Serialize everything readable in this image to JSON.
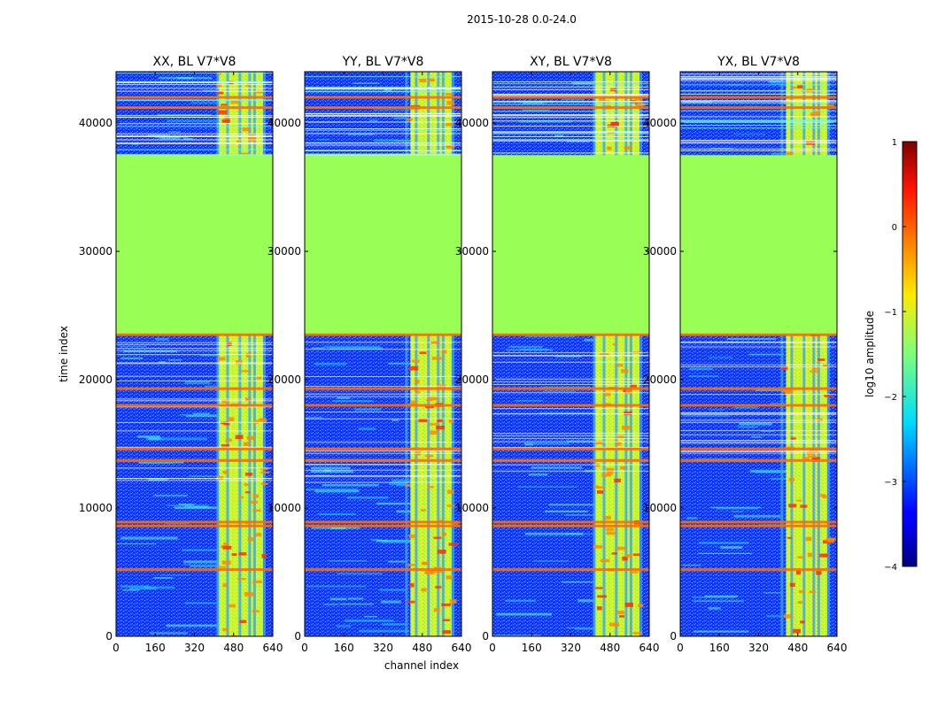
{
  "figure": {
    "suptitle": "2015-10-28 0.0-24.0",
    "xlabel": "channel index",
    "ylabel": "time index"
  },
  "colors": {
    "background": "#ffffff",
    "flagged_fill": "#99ff55",
    "flag_line": "#ff6a00",
    "axes": "#000000"
  },
  "chart_data": {
    "type": "heatmap",
    "x_range": [
      0,
      640
    ],
    "y_range": [
      0,
      44000
    ],
    "x_ticks": [
      0,
      160,
      320,
      480,
      640
    ],
    "x_tick_labels": [
      "0",
      "160",
      "320",
      "480",
      "640"
    ],
    "y_ticks": [
      0,
      10000,
      20000,
      30000,
      40000
    ],
    "y_tick_labels": [
      "0",
      "10000",
      "20000",
      "30000",
      "40000"
    ],
    "panels": [
      {
        "title": "XX, BL V7*V8",
        "polarization": "XX"
      },
      {
        "title": "YY, BL V7*V8",
        "polarization": "YY"
      },
      {
        "title": "XY, BL V7*V8",
        "polarization": "XY"
      },
      {
        "title": "YX, BL V7*V8",
        "polarization": "YX"
      }
    ],
    "flagged_time_range": [
      23500,
      37500
    ],
    "flag_lines": [
      23500,
      19300,
      18000,
      14600,
      13700,
      8900,
      8600,
      5200,
      41200,
      42000
    ],
    "bright_channel_band": [
      410,
      600
    ],
    "bright_channel_columns": [
      410,
      450,
      500,
      540,
      560,
      600
    ],
    "colorbar": {
      "label": "log10 amplitude",
      "range": [
        -4,
        1
      ],
      "ticks": [
        1,
        0,
        -1,
        -2,
        -3,
        -4
      ],
      "tick_labels": [
        "1",
        "0",
        "−1",
        "−2",
        "−3",
        "−4"
      ]
    }
  }
}
